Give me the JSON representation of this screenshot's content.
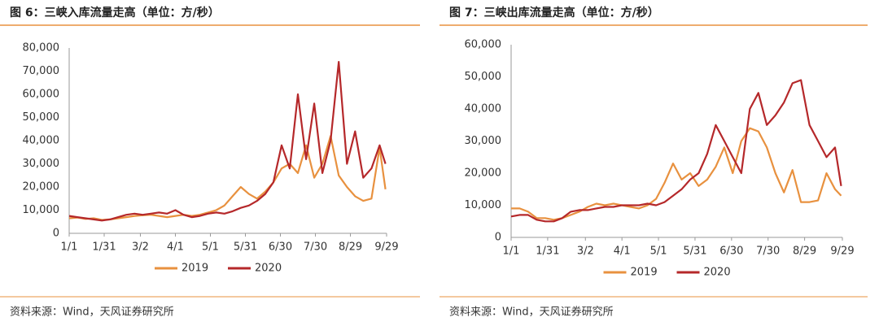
{
  "chart_data": [
    {
      "type": "line",
      "title": "图 6：三峡入库流量走高（单位：方/秒）",
      "source": "资料来源：Wind，天风证券研究所",
      "x": [
        0,
        7,
        14,
        21,
        28,
        35,
        42,
        49,
        56,
        63,
        70,
        77,
        84,
        91,
        98,
        105,
        112,
        119,
        126,
        133,
        140,
        147,
        154,
        161,
        168,
        175,
        182,
        189,
        196,
        203,
        210,
        217,
        224,
        231,
        238,
        245,
        252,
        259,
        266,
        271
      ],
      "xlim": [
        0,
        272
      ],
      "xticks": [
        {
          "value": 0,
          "label": "1/1"
        },
        {
          "value": 30,
          "label": "1/31"
        },
        {
          "value": 61,
          "label": "3/2"
        },
        {
          "value": 91,
          "label": "4/1"
        },
        {
          "value": 121,
          "label": "5/1"
        },
        {
          "value": 151,
          "label": "5/31"
        },
        {
          "value": 181,
          "label": "6/30"
        },
        {
          "value": 211,
          "label": "7/30"
        },
        {
          "value": 241,
          "label": "8/29"
        },
        {
          "value": 272,
          "label": "9/29"
        }
      ],
      "ylim": [
        0,
        80000
      ],
      "yticks": [
        0,
        {
          "value": 10000,
          "label": "10,000"
        },
        {
          "value": 20000,
          "label": "20,000"
        },
        {
          "value": 30000,
          "label": "30,000"
        },
        {
          "value": 40000,
          "label": "40,000"
        },
        {
          "value": 50000,
          "label": "50,000"
        },
        {
          "value": 60000,
          "label": "60,000"
        },
        {
          "value": 70000,
          "label": "70,000"
        },
        {
          "value": 80000,
          "label": "80,000"
        }
      ],
      "legend": "bottom",
      "series": [
        {
          "name": "2019",
          "color": "#e8913f",
          "values": [
            6500,
            6800,
            6200,
            6500,
            5800,
            6000,
            6500,
            7000,
            7500,
            7800,
            8000,
            7500,
            7000,
            7500,
            8000,
            7500,
            8000,
            9000,
            10000,
            12000,
            16000,
            20000,
            17000,
            15000,
            18000,
            22000,
            28000,
            30000,
            26000,
            38000,
            24000,
            30000,
            42000,
            25000,
            20000,
            16000,
            14000,
            15000,
            37000,
            19000
          ]
        },
        {
          "name": "2020",
          "color": "#b5282a",
          "values": [
            7500,
            7000,
            6500,
            6000,
            5500,
            6000,
            7000,
            8000,
            8500,
            8000,
            8500,
            9000,
            8500,
            10000,
            8000,
            7000,
            7500,
            8500,
            9000,
            8500,
            9500,
            11000,
            12000,
            14000,
            17000,
            22000,
            38000,
            28000,
            60000,
            32000,
            56000,
            26000,
            40000,
            74000,
            30000,
            44000,
            24000,
            28000,
            38000,
            30000
          ]
        }
      ]
    },
    {
      "type": "line",
      "title": "图 7：三峡出库流量走高（单位：方/秒）",
      "source": "资料来源：Wind，天风证券研究所",
      "x": [
        0,
        7,
        14,
        21,
        28,
        35,
        42,
        49,
        56,
        63,
        70,
        77,
        84,
        91,
        98,
        105,
        112,
        119,
        126,
        133,
        140,
        147,
        154,
        161,
        168,
        175,
        182,
        189,
        196,
        203,
        210,
        217,
        224,
        231,
        238,
        245,
        252,
        259,
        266,
        271
      ],
      "xlim": [
        0,
        272
      ],
      "xticks": [
        {
          "value": 0,
          "label": "1/1"
        },
        {
          "value": 30,
          "label": "1/31"
        },
        {
          "value": 61,
          "label": "3/2"
        },
        {
          "value": 91,
          "label": "4/1"
        },
        {
          "value": 121,
          "label": "5/1"
        },
        {
          "value": 151,
          "label": "5/31"
        },
        {
          "value": 181,
          "label": "6/30"
        },
        {
          "value": 211,
          "label": "7/30"
        },
        {
          "value": 241,
          "label": "8/29"
        },
        {
          "value": 272,
          "label": "9/29"
        }
      ],
      "ylim": [
        0,
        60000
      ],
      "yticks": [
        0,
        {
          "value": 10000,
          "label": "10,000"
        },
        {
          "value": 20000,
          "label": "20,000"
        },
        {
          "value": 30000,
          "label": "30,000"
        },
        {
          "value": 40000,
          "label": "40,000"
        },
        {
          "value": 50000,
          "label": "50,000"
        },
        {
          "value": 60000,
          "label": "60,000"
        }
      ],
      "legend": "bottom",
      "series": [
        {
          "name": "2019",
          "color": "#e8913f",
          "values": [
            9000,
            9000,
            8000,
            6000,
            6000,
            5500,
            6000,
            7000,
            8000,
            9500,
            10500,
            10000,
            10500,
            10000,
            9500,
            9000,
            10000,
            12000,
            17000,
            23000,
            18000,
            20000,
            16000,
            18000,
            22000,
            28000,
            20000,
            30000,
            34000,
            33000,
            28000,
            20000,
            14000,
            21000,
            11000,
            11000,
            11500,
            20000,
            15000,
            13000
          ]
        },
        {
          "name": "2020",
          "color": "#b5282a",
          "values": [
            6500,
            7000,
            7000,
            5500,
            5000,
            5000,
            6000,
            8000,
            8500,
            8500,
            9000,
            9500,
            9500,
            10000,
            10000,
            10000,
            10500,
            10000,
            11000,
            13000,
            15000,
            18000,
            20000,
            26000,
            35000,
            30000,
            25000,
            20000,
            40000,
            45000,
            35000,
            38000,
            42000,
            48000,
            49000,
            35000,
            30000,
            25000,
            28000,
            16000
          ]
        }
      ]
    }
  ]
}
